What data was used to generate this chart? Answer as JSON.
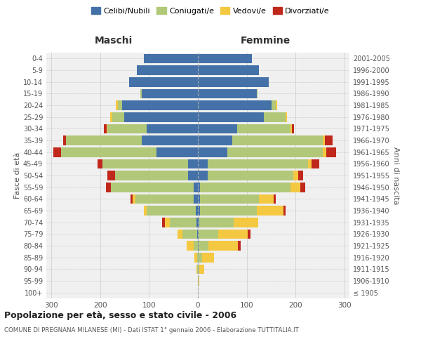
{
  "age_groups": [
    "100+",
    "95-99",
    "90-94",
    "85-89",
    "80-84",
    "75-79",
    "70-74",
    "65-69",
    "60-64",
    "55-59",
    "50-54",
    "45-49",
    "40-44",
    "35-39",
    "30-34",
    "25-29",
    "20-24",
    "15-19",
    "10-14",
    "5-9",
    "0-4"
  ],
  "birth_years": [
    "≤ 1905",
    "1906-1910",
    "1911-1915",
    "1916-1920",
    "1921-1925",
    "1926-1930",
    "1931-1935",
    "1936-1940",
    "1941-1945",
    "1946-1950",
    "1951-1955",
    "1956-1960",
    "1961-1965",
    "1966-1970",
    "1971-1975",
    "1976-1980",
    "1981-1985",
    "1986-1990",
    "1991-1995",
    "1996-2000",
    "2001-2005"
  ],
  "colors": {
    "celibi": "#4472a8",
    "coniugati": "#b0c878",
    "vedovi": "#f5c842",
    "divorziati": "#c0281c"
  },
  "male": {
    "celibi": [
      0,
      0,
      0,
      0,
      0,
      2,
      3,
      5,
      8,
      8,
      20,
      20,
      85,
      115,
      105,
      150,
      155,
      115,
      140,
      125,
      110
    ],
    "coniugati": [
      0,
      0,
      1,
      2,
      8,
      30,
      55,
      100,
      120,
      170,
      150,
      175,
      195,
      155,
      80,
      25,
      8,
      2,
      0,
      0,
      0
    ],
    "vedovi": [
      0,
      0,
      2,
      5,
      15,
      10,
      10,
      5,
      5,
      0,
      0,
      0,
      0,
      0,
      2,
      5,
      5,
      0,
      0,
      0,
      0
    ],
    "divorziati": [
      0,
      0,
      0,
      0,
      0,
      0,
      5,
      0,
      5,
      10,
      15,
      10,
      15,
      5,
      5,
      0,
      0,
      0,
      0,
      0,
      0
    ]
  },
  "female": {
    "celibi": [
      0,
      0,
      0,
      0,
      2,
      2,
      3,
      5,
      5,
      5,
      20,
      20,
      60,
      70,
      80,
      135,
      150,
      120,
      145,
      125,
      110
    ],
    "coniugati": [
      0,
      1,
      3,
      8,
      20,
      40,
      70,
      115,
      120,
      185,
      175,
      205,
      195,
      185,
      110,
      45,
      10,
      2,
      0,
      0,
      0
    ],
    "vedovi": [
      0,
      2,
      10,
      25,
      60,
      60,
      50,
      55,
      30,
      20,
      10,
      8,
      8,
      5,
      2,
      2,
      2,
      0,
      0,
      0,
      0
    ],
    "divorziati": [
      0,
      0,
      0,
      0,
      5,
      5,
      0,
      5,
      5,
      10,
      10,
      15,
      20,
      15,
      5,
      0,
      0,
      0,
      0,
      0,
      0
    ]
  },
  "xlim": 310,
  "title": "Popolazione per età, sesso e stato civile - 2006",
  "subtitle": "COMUNE DI PREGNANA MILANESE (MI) - Dati ISTAT 1° gennaio 2006 - Elaborazione TUTTITALIA.IT",
  "xlabel_left": "Maschi",
  "xlabel_right": "Femmine",
  "ylabel_left": "Fasce di età",
  "ylabel_right": "Anni di nascita",
  "legend_labels": [
    "Celibi/Nubili",
    "Coniugati/e",
    "Vedovi/e",
    "Divorziati/e"
  ],
  "bg_color": "#ffffff",
  "plot_bg_color": "#f0f0f0",
  "grid_color": "#cccccc"
}
